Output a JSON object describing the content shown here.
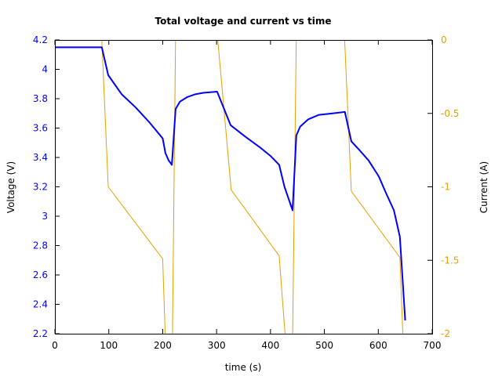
{
  "chart_data": {
    "type": "line",
    "title": "Total voltage and current vs time",
    "xlabel": "time (s)",
    "ylabel": "Voltage (V)",
    "y2label": "Current (A)",
    "xlim": [
      0,
      700
    ],
    "ylim": [
      2.2,
      4.2
    ],
    "y2lim": [
      -2,
      0
    ],
    "xticks": [
      0,
      100,
      200,
      300,
      400,
      500,
      600,
      700
    ],
    "yticks": [
      2.2,
      2.4,
      2.6,
      2.8,
      3,
      3.2,
      3.4,
      3.6,
      3.8,
      4,
      4.2
    ],
    "y2ticks": [
      0,
      -0.5,
      -1,
      -1.5,
      -2
    ],
    "grid": false,
    "legend": null,
    "series": [
      {
        "name": "Voltage",
        "axis": "left",
        "color": "#0000ff",
        "x": [
          0,
          87,
          99,
          124,
          150,
          175,
          200,
          205,
          211,
          217,
          224,
          232,
          245,
          260,
          275,
          301,
          326,
          354,
          380,
          400,
          416,
          426,
          441,
          448,
          455,
          470,
          490,
          515,
          538,
          550,
          565,
          582,
          601,
          614,
          629,
          640,
          650
        ],
        "y": [
          4.15,
          4.15,
          3.96,
          3.83,
          3.74,
          3.64,
          3.53,
          3.43,
          3.38,
          3.35,
          3.73,
          3.78,
          3.81,
          3.83,
          3.84,
          3.848,
          3.62,
          3.54,
          3.47,
          3.41,
          3.35,
          3.2,
          3.04,
          3.55,
          3.61,
          3.66,
          3.69,
          3.7,
          3.71,
          3.51,
          3.45,
          3.38,
          3.27,
          3.16,
          3.04,
          2.86,
          2.29
        ]
      },
      {
        "name": "Current",
        "axis": "right",
        "color": "#e6a000",
        "x": [
          87,
          99,
          200,
          205,
          218,
          224,
          301,
          327,
          416,
          428,
          441,
          448,
          537,
          550,
          640,
          646
        ],
        "y": [
          0,
          -1.0,
          -1.49,
          -2.05,
          -2.05,
          0.05,
          0.05,
          -1.02,
          -1.47,
          -2.05,
          -2.05,
          0.05,
          0.05,
          -1.03,
          -1.48,
          -2.05
        ]
      }
    ]
  }
}
